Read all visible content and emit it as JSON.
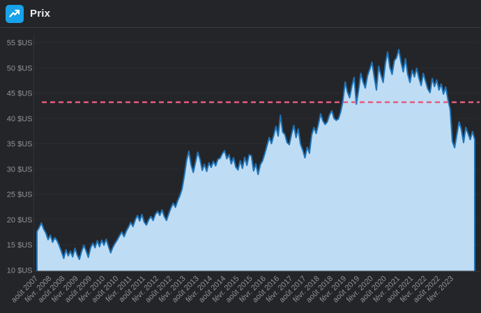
{
  "header": {
    "title": "Prix",
    "icon": "trending-up-icon",
    "icon_bg_color": "#17a2ea",
    "icon_glyph_color": "#ffffff"
  },
  "chart_data": {
    "type": "area",
    "title": "Prix",
    "unit": "$US",
    "x_start": "août 2007",
    "x_frequency": "monthly",
    "x_tick_every_points": 6,
    "x_tick_labels": [
      "août 2007",
      "févr. 2008",
      "août 2008",
      "févr. 2009",
      "août 2009",
      "févr. 2010",
      "août 2010",
      "févr. 2011",
      "août 2011",
      "févr. 2012",
      "août 2012",
      "févr. 2013",
      "août 2013",
      "févr. 2014",
      "août 2014",
      "févr. 2015",
      "août 2015",
      "févr. 2016",
      "août 2016",
      "févr. 2017",
      "août 2017",
      "févr. 2018",
      "août 2018",
      "févr. 2019",
      "août 2019",
      "févr. 2020",
      "août 2020",
      "févr. 2021",
      "août 2021",
      "févr. 2022",
      "août 2022",
      "févr. 2023"
    ],
    "y_ticks": [
      10,
      15,
      20,
      25,
      30,
      35,
      40,
      45,
      50,
      55
    ],
    "y_tick_labels": [
      "10 $US",
      "15 $US",
      "20 $US",
      "25 $US",
      "30 $US",
      "35 $US",
      "40 $US",
      "45 $US",
      "50 $US",
      "55 $US"
    ],
    "ylim": [
      10,
      55
    ],
    "grid": "horizontal",
    "legend": "none",
    "threshold_line": {
      "value": 43.2,
      "style": "dashed",
      "color": "#e85b80"
    },
    "series": [
      {
        "name": "Prix",
        "values": [
          17.6,
          18.4,
          19.3,
          18.1,
          17.3,
          16.0,
          16.9,
          15.5,
          16.4,
          15.8,
          14.8,
          13.6,
          12.3,
          14.0,
          12.8,
          13.7,
          12.6,
          14.3,
          13.0,
          12.1,
          13.7,
          14.9,
          13.8,
          12.5,
          14.4,
          15.3,
          14.4,
          15.8,
          14.6,
          15.9,
          14.9,
          16.1,
          14.7,
          13.4,
          14.5,
          15.3,
          16.0,
          16.8,
          17.5,
          16.6,
          17.7,
          18.5,
          19.4,
          18.6,
          19.9,
          20.8,
          19.7,
          21.0,
          19.5,
          18.9,
          19.9,
          20.6,
          19.8,
          21.0,
          21.6,
          20.8,
          21.9,
          20.6,
          19.8,
          21.1,
          22.3,
          23.2,
          22.4,
          23.7,
          24.7,
          26.1,
          28.7,
          31.7,
          33.5,
          30.8,
          29.3,
          31.3,
          33.3,
          31.9,
          29.7,
          30.9,
          29.5,
          31.2,
          30.3,
          31.5,
          30.6,
          31.9,
          32.1,
          33.0,
          33.6,
          32.0,
          32.8,
          31.0,
          32.2,
          30.4,
          29.8,
          31.6,
          30.1,
          32.3,
          30.7,
          32.8,
          32.6,
          29.6,
          31.0,
          28.9,
          30.8,
          31.6,
          33.0,
          34.6,
          36.2,
          35.0,
          36.6,
          38.4,
          36.5,
          40.6,
          37.3,
          36.8,
          35.2,
          34.8,
          36.9,
          38.6,
          36.2,
          37.9,
          34.9,
          33.7,
          32.2,
          34.3,
          33.1,
          36.7,
          38.2,
          37.0,
          38.8,
          40.9,
          39.5,
          38.8,
          39.3,
          40.7,
          41.5,
          40.0,
          39.6,
          39.9,
          41.3,
          43.5,
          47.2,
          45.2,
          44.1,
          46.4,
          48.1,
          42.8,
          45.6,
          48.9,
          47.2,
          46.0,
          48.4,
          49.7,
          51.1,
          48.2,
          45.6,
          50.3,
          48.6,
          47.1,
          50.9,
          53.1,
          50.1,
          48.7,
          51.4,
          52.0,
          53.6,
          51.1,
          49.2,
          51.8,
          48.7,
          47.1,
          49.5,
          48.2,
          49.9,
          48.0,
          46.5,
          48.9,
          47.3,
          45.8,
          45.1,
          47.9,
          46.3,
          47.6,
          45.6,
          46.8,
          44.8,
          46.2,
          43.7,
          41.8,
          35.4,
          34.2,
          36.8,
          39.3,
          37.8,
          35.2,
          38.2,
          37.0,
          35.8,
          37.4,
          35.8
        ]
      }
    ],
    "colors": {
      "line": "#1f74b8",
      "fill": "#bedcf4",
      "background": "#242529",
      "grid": "#2b2d31",
      "axis": "#33353a",
      "tick_text": "#8f9296"
    }
  }
}
